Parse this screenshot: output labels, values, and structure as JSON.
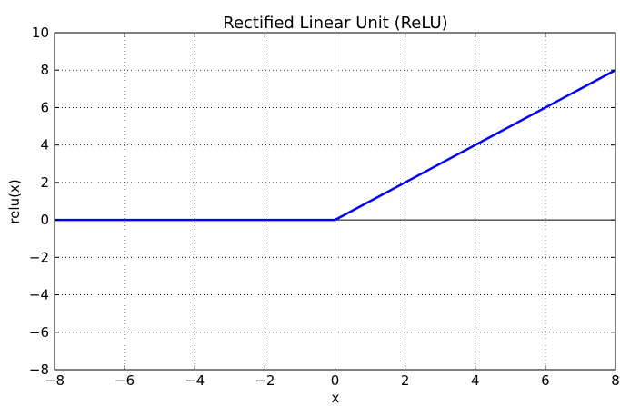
{
  "chart_data": {
    "type": "line",
    "title": "Rectified Linear Unit (ReLU)",
    "xlabel": "x",
    "ylabel": "relu(x)",
    "xlim": [
      -8,
      8
    ],
    "ylim": [
      -8,
      10
    ],
    "xticks": [
      -8,
      -6,
      -4,
      -2,
      0,
      2,
      4,
      6,
      8
    ],
    "yticks": [
      -8,
      -6,
      -4,
      -2,
      0,
      2,
      4,
      6,
      8,
      10
    ],
    "xtick_labels": [
      "−8",
      "−6",
      "−4",
      "−2",
      "0",
      "2",
      "4",
      "6",
      "8"
    ],
    "ytick_labels": [
      "−8",
      "−6",
      "−4",
      "−2",
      "0",
      "2",
      "4",
      "6",
      "8",
      "10"
    ],
    "grid": true,
    "zero_lines": true,
    "series": [
      {
        "color": "#0000ff",
        "x": [
          -8,
          0,
          8
        ],
        "y": [
          0,
          0,
          8
        ]
      }
    ]
  }
}
